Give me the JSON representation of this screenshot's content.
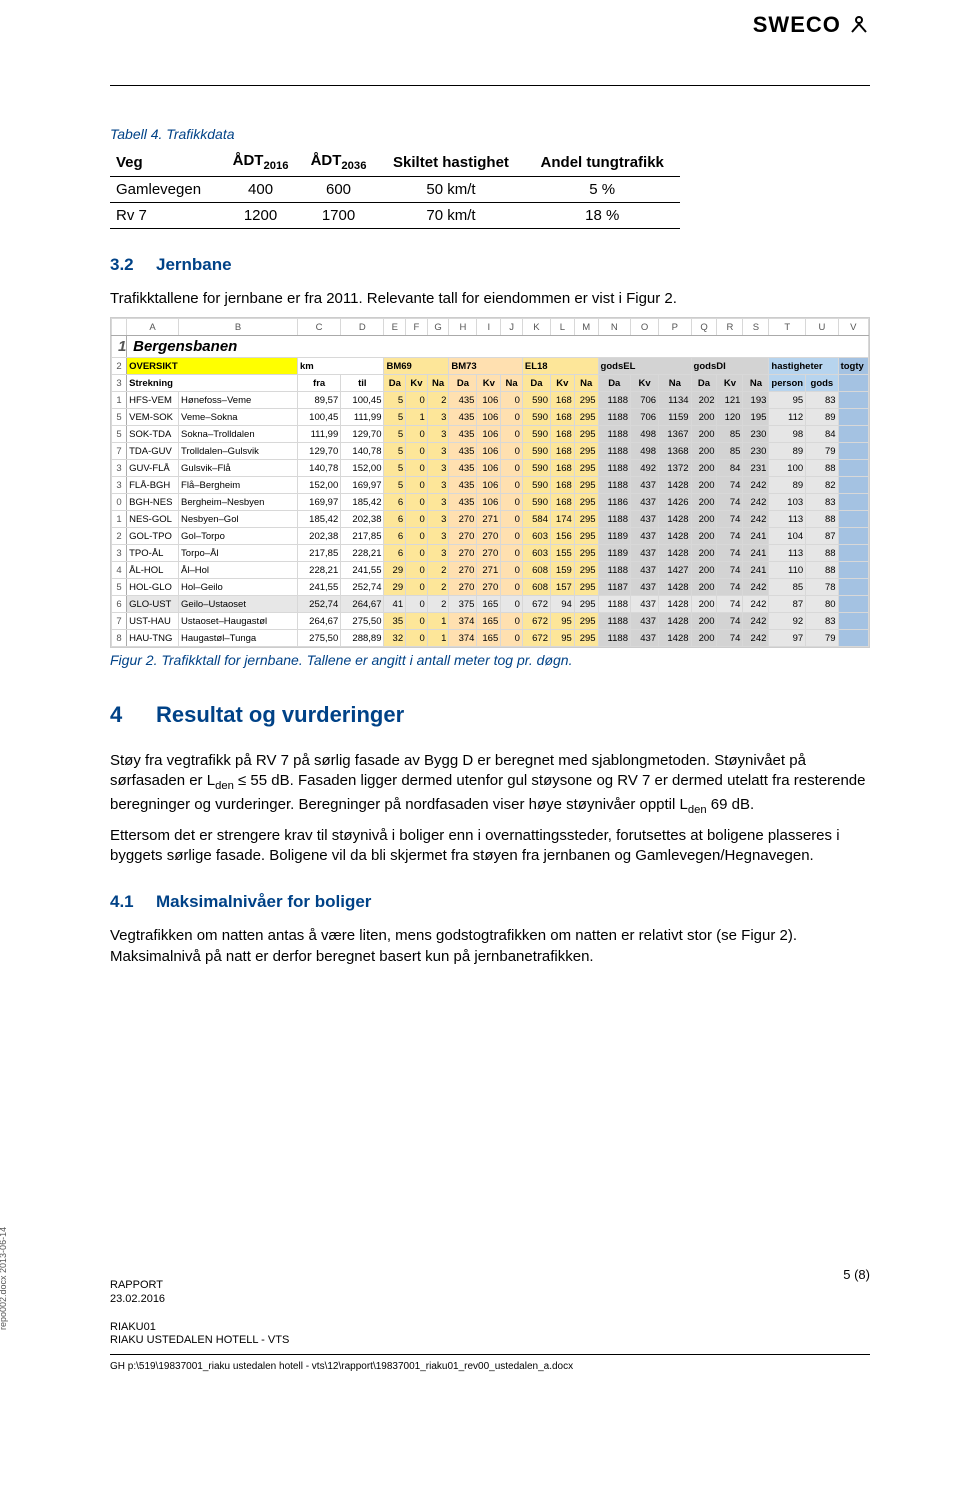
{
  "brand": "SWECO",
  "table1": {
    "title": "Tabell 4. Trafikkdata",
    "columns": [
      "Veg",
      "ÅDT<sub>2016</sub>",
      "ÅDT<sub>2036</sub>",
      "Skiltet hastighet",
      "Andel tungtrafikk"
    ],
    "rows": [
      [
        "Gamlevegen",
        "400",
        "600",
        "50 km/t",
        "5 %"
      ],
      [
        "Rv 7",
        "1200",
        "1700",
        "70 km/t",
        "18 %"
      ]
    ]
  },
  "sec32": {
    "num": "3.2",
    "title": "Jernbane",
    "p": "Trafikktallene for jernbane er fra 2011. Relevante tall for eiendommen er vist i Figur 2."
  },
  "spreadsheet": {
    "colhead": [
      "",
      "A",
      "B",
      "C",
      "D",
      "E",
      "F",
      "G",
      "H",
      "I",
      "J",
      "K",
      "L",
      "M",
      "N",
      "O",
      "P",
      "Q",
      "R",
      "S",
      "T",
      "U",
      "V"
    ],
    "banner": "Bergensbanen",
    "hdr1": {
      "oversikt": "OVERSIKT",
      "km": "km",
      "bm69": "BM69",
      "bm73": "BM73",
      "el18": "EL18",
      "godsel": "godsEL",
      "godsdi": "godsDI",
      "hast": "hastigheter",
      "togty": "togty"
    },
    "hdr2": {
      "strek": "Strekning",
      "fra": "fra",
      "til": "til",
      "da": "Da",
      "kv": "Kv",
      "na": "Na",
      "person": "person",
      "gods": "gods"
    },
    "rows": [
      {
        "n": "1",
        "c": "HFS-VEM",
        "name": "Hønefoss–Veme",
        "fra": "89,57",
        "til": "100,45",
        "v": [
          "5",
          "0",
          "2",
          "435",
          "106",
          "0",
          "590",
          "168",
          "295",
          "1188",
          "706",
          "1134",
          "202",
          "121",
          "193",
          "95",
          "83"
        ]
      },
      {
        "n": "5",
        "c": "VEM-SOK",
        "name": "Veme–Sokna",
        "fra": "100,45",
        "til": "111,99",
        "v": [
          "5",
          "1",
          "3",
          "435",
          "106",
          "0",
          "590",
          "168",
          "295",
          "1188",
          "706",
          "1159",
          "200",
          "120",
          "195",
          "112",
          "89"
        ]
      },
      {
        "n": "5",
        "c": "SOK-TDA",
        "name": "Sokna–Trolldalen",
        "fra": "111,99",
        "til": "129,70",
        "v": [
          "5",
          "0",
          "3",
          "435",
          "106",
          "0",
          "590",
          "168",
          "295",
          "1188",
          "498",
          "1367",
          "200",
          "85",
          "230",
          "98",
          "84"
        ]
      },
      {
        "n": "7",
        "c": "TDA-GUV",
        "name": "Trolldalen–Gulsvik",
        "fra": "129,70",
        "til": "140,78",
        "v": [
          "5",
          "0",
          "3",
          "435",
          "106",
          "0",
          "590",
          "168",
          "295",
          "1188",
          "498",
          "1368",
          "200",
          "85",
          "230",
          "89",
          "79"
        ]
      },
      {
        "n": "3",
        "c": "GUV-FLÅ",
        "name": "Gulsvik–Flå",
        "fra": "140,78",
        "til": "152,00",
        "v": [
          "5",
          "0",
          "3",
          "435",
          "106",
          "0",
          "590",
          "168",
          "295",
          "1188",
          "492",
          "1372",
          "200",
          "84",
          "231",
          "100",
          "88"
        ]
      },
      {
        "n": "3",
        "c": "FLÅ-BGH",
        "name": "Flå–Bergheim",
        "fra": "152,00",
        "til": "169,97",
        "v": [
          "5",
          "0",
          "3",
          "435",
          "106",
          "0",
          "590",
          "168",
          "295",
          "1188",
          "437",
          "1428",
          "200",
          "74",
          "242",
          "89",
          "82"
        ]
      },
      {
        "n": "0",
        "c": "BGH-NES",
        "name": "Bergheim–Nesbyen",
        "fra": "169,97",
        "til": "185,42",
        "v": [
          "6",
          "0",
          "3",
          "435",
          "106",
          "0",
          "590",
          "168",
          "295",
          "1186",
          "437",
          "1426",
          "200",
          "74",
          "242",
          "103",
          "83"
        ]
      },
      {
        "n": "1",
        "c": "NES-GOL",
        "name": "Nesbyen–Gol",
        "fra": "185,42",
        "til": "202,38",
        "v": [
          "6",
          "0",
          "3",
          "270",
          "271",
          "0",
          "584",
          "174",
          "295",
          "1188",
          "437",
          "1428",
          "200",
          "74",
          "242",
          "113",
          "88"
        ]
      },
      {
        "n": "2",
        "c": "GOL-TPO",
        "name": "Gol–Torpo",
        "fra": "202,38",
        "til": "217,85",
        "v": [
          "6",
          "0",
          "3",
          "270",
          "270",
          "0",
          "603",
          "156",
          "295",
          "1189",
          "437",
          "1428",
          "200",
          "74",
          "241",
          "104",
          "87"
        ]
      },
      {
        "n": "3",
        "c": "TPO-ÅL",
        "name": "Torpo–Ål",
        "fra": "217,85",
        "til": "228,21",
        "v": [
          "6",
          "0",
          "3",
          "270",
          "270",
          "0",
          "603",
          "155",
          "295",
          "1189",
          "437",
          "1428",
          "200",
          "74",
          "241",
          "113",
          "88"
        ]
      },
      {
        "n": "4",
        "c": "ÅL-HOL",
        "name": "Ål–Hol",
        "fra": "228,21",
        "til": "241,55",
        "v": [
          "29",
          "0",
          "2",
          "270",
          "271",
          "0",
          "608",
          "159",
          "295",
          "1188",
          "437",
          "1427",
          "200",
          "74",
          "241",
          "110",
          "88"
        ]
      },
      {
        "n": "5",
        "c": "HOL-GLO",
        "name": "Hol–Geilo",
        "fra": "241,55",
        "til": "252,74",
        "v": [
          "29",
          "0",
          "2",
          "270",
          "270",
          "0",
          "608",
          "157",
          "295",
          "1187",
          "437",
          "1428",
          "200",
          "74",
          "242",
          "85",
          "78"
        ]
      },
      {
        "n": "6",
        "c": "GLO-UST",
        "name": "Geilo–Ustaoset",
        "fra": "252,74",
        "til": "264,67",
        "v": [
          "41",
          "0",
          "2",
          "375",
          "165",
          "0",
          "672",
          "94",
          "295",
          "1188",
          "437",
          "1428",
          "200",
          "74",
          "242",
          "87",
          "80",
          "hl"
        ]
      },
      {
        "n": "7",
        "c": "UST-HAU",
        "name": "Ustaoset–Haugastøl",
        "fra": "264,67",
        "til": "275,50",
        "v": [
          "35",
          "0",
          "1",
          "374",
          "165",
          "0",
          "672",
          "95",
          "295",
          "1188",
          "437",
          "1428",
          "200",
          "74",
          "242",
          "92",
          "83"
        ]
      },
      {
        "n": "8",
        "c": "HAU-TNG",
        "name": "Haugastøl–Tunga",
        "fra": "275,50",
        "til": "288,89",
        "v": [
          "32",
          "0",
          "1",
          "374",
          "165",
          "0",
          "672",
          "95",
          "295",
          "1188",
          "437",
          "1428",
          "200",
          "74",
          "242",
          "97",
          "79"
        ]
      }
    ],
    "colors": {
      "bm69_bg": "#fde699",
      "bm73_bg": "#ffe0b0",
      "el18_bg": "#fde699",
      "gods_bg": "#d3d3d3",
      "hast_bg": "#b7d4ee",
      "hast_bg2": "#e6e6e6",
      "togty_bg": "#a4c2e2",
      "hl_row": "#e7e7e7"
    }
  },
  "figcaption": "Figur 2. Trafikktall for jernbane. Tallene er angitt i antall meter tog pr. døgn.",
  "sec4": {
    "num": "4",
    "title": "Resultat og vurderinger",
    "p1": "Støy fra vegtrafikk på RV 7 på sørlig fasade av Bygg D er beregnet med sjablongmetoden. Støynivået på sørfasaden er L",
    "p1_sub": "den",
    "p1b": " ≤ 55 dB. Fasaden ligger dermed utenfor gul støysone og RV 7 er dermed utelatt fra resterende beregninger og vurderinger. Beregninger på nordfasaden viser høye støynivåer opptil L",
    "p1c": " 69 dB.",
    "p2": "Ettersom det er strengere krav til støynivå i boliger enn i overnattingssteder, forutsettes at boligene plasseres i byggets sørlige fasade. Boligene vil da bli skjermet fra støyen fra jernbanen og Gamlevegen/Hegnavegen."
  },
  "sec41": {
    "num": "4.1",
    "title": "Maksimalnivåer for boliger",
    "p": "Vegtrafikken om natten antas å være liten, mens godstogtrafikken om natten er relativt stor (se Figur 2). Maksimalnivå på natt er derfor beregnet basert kun på jernbanetrafikken."
  },
  "footer": {
    "pagenum": "5 (8)",
    "l1": "RAPPORT",
    "l2": "23.02.2016",
    "l3": "RIAKU01",
    "l4": "RIAKU USTEDALEN HOTELL - VTS",
    "path": "GH p:\\519\\19837001_riaku ustedalen hotell - vts\\12\\rapport\\19837001_riaku01_rev00_ustedalen_a.docx",
    "side": "repo002.docx 2013-06-14"
  }
}
